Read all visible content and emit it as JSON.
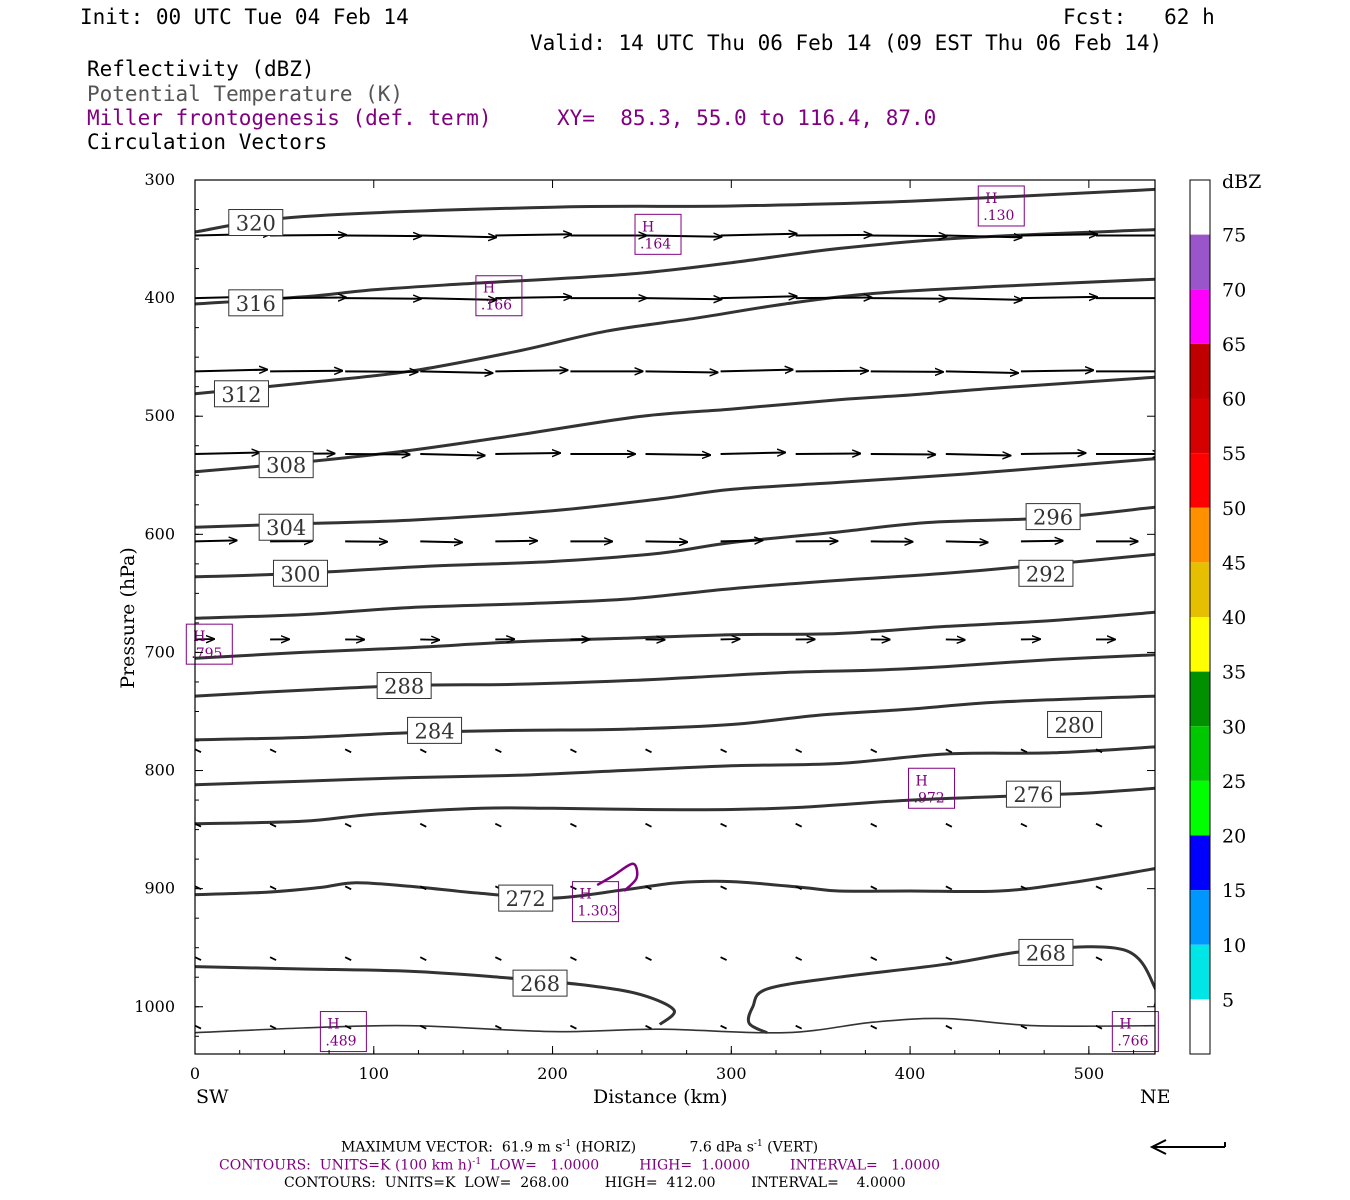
{
  "header": {
    "init": "Init: 00 UTC Tue 04 Feb 14",
    "fcst": "Fcst:   62 h",
    "valid": "Valid: 14 UTC Thu 06 Feb 14 (09 EST Thu 06 Feb 14)",
    "fields": [
      {
        "label": "Reflectivity (dBZ)",
        "color": "#000000"
      },
      {
        "label": "Potential Temperature (K)",
        "color": "#555555"
      },
      {
        "label": "Miller frontogenesis (def. term)",
        "color": "#800080"
      },
      {
        "label": "Circulation Vectors",
        "color": "#000000"
      }
    ],
    "xy": "XY=  85.3, 55.0 to 116.4, 87.0"
  },
  "chart_data": {
    "type": "line",
    "subtype": "vertical cross-section",
    "xlabel": "Distance (km)",
    "ylabel": "Pressure (hPa)",
    "x_ticks": [
      0,
      100,
      200,
      300,
      400,
      500
    ],
    "y_ticks": [
      300,
      400,
      500,
      600,
      700,
      800,
      900,
      1000
    ],
    "xlim": [
      0,
      537
    ],
    "ylim": [
      1040,
      300
    ],
    "left_end_label": "SW",
    "right_end_label": "NE",
    "theta_contours": [
      {
        "value": 320,
        "label_at": [
          34,
          336
        ],
        "points": [
          [
            0,
            344
          ],
          [
            60,
            331
          ],
          [
            200,
            323
          ],
          [
            300,
            322
          ],
          [
            400,
            318
          ],
          [
            537,
            308
          ]
        ]
      },
      {
        "value": 316,
        "label_at": [
          34,
          404
        ],
        "points": [
          [
            0,
            405
          ],
          [
            60,
            399
          ],
          [
            100,
            393
          ],
          [
            150,
            388
          ],
          [
            240,
            380
          ],
          [
            300,
            370
          ],
          [
            360,
            358
          ],
          [
            430,
            349
          ],
          [
            537,
            342
          ]
        ]
      },
      {
        "value": 312,
        "label_at": [
          26,
          481
        ],
        "points": [
          [
            0,
            481
          ],
          [
            60,
            472
          ],
          [
            120,
            462
          ],
          [
            180,
            445
          ],
          [
            230,
            428
          ],
          [
            280,
            417
          ],
          [
            330,
            405
          ],
          [
            380,
            396
          ],
          [
            450,
            390
          ],
          [
            537,
            384
          ]
        ]
      },
      {
        "value": 308,
        "label_at": [
          51,
          541
        ],
        "points": [
          [
            0,
            547
          ],
          [
            60,
            539
          ],
          [
            120,
            529
          ],
          [
            180,
            516
          ],
          [
            250,
            500
          ],
          [
            300,
            494
          ],
          [
            360,
            486
          ],
          [
            400,
            482
          ],
          [
            450,
            476
          ],
          [
            537,
            467
          ]
        ]
      },
      {
        "value": 304,
        "label_at": [
          51,
          594
        ],
        "points": [
          [
            0,
            594
          ],
          [
            60,
            591
          ],
          [
            120,
            588
          ],
          [
            200,
            580
          ],
          [
            260,
            570
          ],
          [
            300,
            562
          ],
          [
            360,
            556
          ],
          [
            430,
            549
          ],
          [
            480,
            543
          ],
          [
            537,
            536
          ]
        ]
      },
      {
        "value": 300,
        "label_at": [
          59,
          633
        ],
        "points": [
          [
            0,
            636
          ],
          [
            60,
            633
          ],
          [
            130,
            627
          ],
          [
            200,
            623
          ],
          [
            260,
            616
          ],
          [
            300,
            607
          ],
          [
            360,
            598
          ],
          [
            410,
            590
          ],
          [
            480,
            586
          ],
          [
            537,
            577
          ]
        ]
      },
      {
        "value": 296,
        "label_at": [
          480,
          585
        ],
        "points": [
          [
            0,
            671
          ],
          [
            60,
            668
          ],
          [
            120,
            662
          ],
          [
            180,
            659
          ],
          [
            240,
            655
          ],
          [
            300,
            646
          ],
          [
            360,
            639
          ],
          [
            420,
            633
          ],
          [
            480,
            625
          ],
          [
            537,
            617
          ]
        ]
      },
      {
        "value": 292,
        "label_at": [
          476,
          633
        ],
        "points": [
          [
            0,
            705
          ],
          [
            60,
            700
          ],
          [
            120,
            696
          ],
          [
            180,
            691
          ],
          [
            240,
            688
          ],
          [
            300,
            685
          ],
          [
            360,
            684
          ],
          [
            420,
            678
          ],
          [
            480,
            673
          ],
          [
            537,
            666
          ]
        ]
      },
      {
        "value": 288,
        "label_at": [
          117,
          728
        ],
        "points": [
          [
            0,
            737
          ],
          [
            60,
            732
          ],
          [
            120,
            728
          ],
          [
            180,
            727
          ],
          [
            240,
            724
          ],
          [
            280,
            721
          ],
          [
            330,
            717
          ],
          [
            380,
            715
          ],
          [
            420,
            712
          ],
          [
            480,
            706
          ],
          [
            537,
            702
          ]
        ]
      },
      {
        "value": 284,
        "label_at": [
          134,
          766
        ],
        "points": [
          [
            0,
            774
          ],
          [
            60,
            772
          ],
          [
            120,
            768
          ],
          [
            180,
            766
          ],
          [
            240,
            765
          ],
          [
            300,
            761
          ],
          [
            350,
            753
          ],
          [
            400,
            748
          ],
          [
            450,
            742
          ],
          [
            537,
            737
          ]
        ]
      },
      {
        "value": 280,
        "label_at": [
          492,
          761
        ],
        "points": [
          [
            0,
            812
          ],
          [
            60,
            809
          ],
          [
            120,
            806
          ],
          [
            180,
            804
          ],
          [
            240,
            800
          ],
          [
            300,
            796
          ],
          [
            360,
            794
          ],
          [
            420,
            786
          ],
          [
            480,
            785
          ],
          [
            537,
            780
          ]
        ]
      },
      {
        "value": 276,
        "label_at": [
          469,
          820
        ],
        "points": [
          [
            0,
            845
          ],
          [
            60,
            843
          ],
          [
            100,
            837
          ],
          [
            160,
            832
          ],
          [
            200,
            832
          ],
          [
            250,
            833
          ],
          [
            300,
            833
          ],
          [
            340,
            831
          ],
          [
            400,
            825
          ],
          [
            450,
            822
          ],
          [
            500,
            819
          ],
          [
            537,
            815
          ]
        ]
      },
      {
        "value": 272,
        "label_at": [
          185,
          908
        ],
        "points": [
          [
            0,
            905
          ],
          [
            40,
            903
          ],
          [
            70,
            899
          ],
          [
            90,
            895
          ],
          [
            120,
            898
          ],
          [
            160,
            904
          ],
          [
            200,
            908
          ],
          [
            240,
            901
          ],
          [
            270,
            895
          ],
          [
            300,
            894
          ],
          [
            340,
            899
          ],
          [
            360,
            902
          ],
          [
            400,
            902
          ],
          [
            450,
            902
          ],
          [
            490,
            895
          ],
          [
            537,
            883
          ]
        ]
      },
      {
        "value": 268,
        "label_at": [
          193,
          980
        ],
        "points": [
          [
            0,
            966
          ],
          [
            60,
            968
          ],
          [
            120,
            970
          ],
          [
            170,
            975
          ],
          [
            220,
            982
          ],
          [
            250,
            990
          ],
          [
            268,
            1003
          ],
          [
            260,
            1015
          ]
        ]
      },
      {
        "value": 268,
        "label_at": [
          476,
          954
        ],
        "points": [
          [
            320,
            1022
          ],
          [
            310,
            1014
          ],
          [
            312,
            1000
          ],
          [
            320,
            985
          ],
          [
            360,
            975
          ],
          [
            420,
            964
          ],
          [
            470,
            952
          ],
          [
            520,
            952
          ],
          [
            537,
            984
          ],
          [
            537,
            1000
          ]
        ]
      },
      {
        "value": 268,
        "label_at": null,
        "points": [
          [
            0,
            1022
          ],
          [
            60,
            1018
          ],
          [
            120,
            1016
          ],
          [
            200,
            1021
          ],
          [
            260,
            1019
          ],
          [
            330,
            1022
          ],
          [
            380,
            1013
          ],
          [
            420,
            1010
          ],
          [
            470,
            1016
          ],
          [
            537,
            1016
          ]
        ]
      }
    ],
    "frontogenesis": {
      "maxima": [
        {
          "label": "H",
          "value": ".130",
          "at": [
            451,
            322
          ]
        },
        {
          "label": "H",
          "value": ".164",
          "at": [
            259,
            346
          ]
        },
        {
          "label": "H",
          "value": ".166",
          "at": [
            170,
            398
          ]
        },
        {
          "label": "H",
          "value": ".795",
          "at": [
            8,
            693
          ]
        },
        {
          "label": "H",
          "value": ".972",
          "at": [
            412,
            815
          ]
        },
        {
          "label": "H",
          "value": "1.303",
          "at": [
            224,
            911
          ]
        },
        {
          "label": "H",
          "value": ".489",
          "at": [
            83,
            1021
          ]
        },
        {
          "label": "H",
          "value": ".766",
          "at": [
            526,
            1021
          ]
        }
      ],
      "contour_1": [
        [
          225,
          897
        ],
        [
          234,
          889
        ],
        [
          245,
          879
        ],
        [
          247,
          891
        ],
        [
          240,
          902
        ]
      ]
    },
    "vectors": {
      "rows": [
        {
          "p": 347,
          "scale": 1.0
        },
        {
          "p": 400,
          "scale": 1.0
        },
        {
          "p": 462,
          "scale": 0.95
        },
        {
          "p": 532,
          "scale": 0.85
        },
        {
          "p": 606,
          "scale": 0.55
        },
        {
          "p": 689,
          "scale": 0.25
        },
        {
          "p": 782,
          "scale": 0.06
        },
        {
          "p": 845,
          "scale": 0.05
        },
        {
          "p": 898,
          "scale": 0.05
        },
        {
          "p": 958,
          "scale": 0.05
        },
        {
          "p": 1016,
          "scale": 0.04
        }
      ],
      "x_positions": [
        0,
        42,
        84,
        126,
        168,
        210,
        252,
        294,
        336,
        378,
        420,
        462,
        504,
        537
      ]
    },
    "colorbar": {
      "title": "dBZ",
      "labels": [
        "5",
        "10",
        "15",
        "20",
        "25",
        "30",
        "35",
        "40",
        "45",
        "50",
        "55",
        "60",
        "65",
        "70",
        "75"
      ],
      "colors": [
        "#00e6e6",
        "#0096ff",
        "#0000ff",
        "#00ff00",
        "#00c800",
        "#009000",
        "#ffff00",
        "#e6c000",
        "#ff9000",
        "#ff0000",
        "#d60000",
        "#c00000",
        "#ff00ff",
        "#9955c9"
      ]
    }
  },
  "footer": {
    "line1": "MAXIMUM VECTOR:  61.9 m s",
    "line1_sup": "-1",
    "line1_b": " (HORIZ)            7.6 dPa s",
    "line1_sup2": "-1",
    "line1_c": " (VERT)",
    "line2": "CONTOURS:  UNITS=K (100 km h)",
    "line2_sup": "-1",
    "line2_b": "  LOW=   1.0000         HIGH=  1.0000         INTERVAL=   1.0000",
    "line3": "CONTOURS:  UNITS=K  LOW=  268.00        HIGH=  412.00        INTERVAL=    4.0000"
  }
}
